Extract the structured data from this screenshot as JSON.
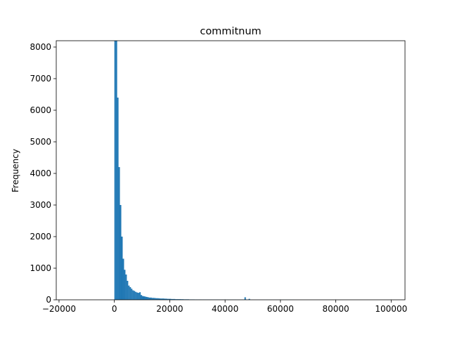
{
  "chart_data": {
    "type": "bar",
    "title": "commitnum",
    "xlabel": "",
    "ylabel": "Frequency",
    "xlim": [
      -21000,
      105000
    ],
    "ylim": [
      0,
      8200
    ],
    "grid": false,
    "bar_color": "#1f77b4",
    "xticks": [
      -20000,
      0,
      20000,
      40000,
      60000,
      80000,
      100000
    ],
    "xtick_labels": [
      "−20000",
      "0",
      "20000",
      "40000",
      "60000",
      "80000",
      "100000"
    ],
    "yticks": [
      0,
      1000,
      2000,
      3000,
      4000,
      5000,
      6000,
      7000,
      8000
    ],
    "ytick_labels": [
      "0",
      "1000",
      "2000",
      "3000",
      "4000",
      "5000",
      "6000",
      "7000",
      "8000"
    ],
    "bin_start": 0,
    "bin_width": 500,
    "values": [
      8200,
      8200,
      6400,
      4200,
      3000,
      2000,
      1300,
      950,
      800,
      600,
      450,
      400,
      350,
      300,
      280,
      250,
      230,
      220,
      240,
      150,
      120,
      110,
      100,
      90,
      80,
      70,
      70,
      60,
      60,
      55,
      50,
      50,
      45,
      40,
      40,
      40,
      35,
      35,
      30,
      30,
      30,
      25,
      25,
      25,
      20,
      20,
      20,
      20,
      18,
      18,
      15,
      15,
      15,
      15,
      12,
      12,
      12,
      12,
      10,
      10,
      10,
      10,
      10,
      9,
      9,
      9,
      8,
      8,
      8,
      8,
      8,
      7,
      7,
      7,
      7,
      7,
      6,
      6,
      6,
      6,
      6,
      5,
      5,
      5,
      5,
      5,
      5,
      5,
      4,
      4,
      4,
      4,
      4,
      4,
      80,
      4,
      4,
      30,
      3,
      3,
      3,
      3,
      3,
      3,
      3,
      3,
      3,
      3,
      2,
      2,
      2,
      2,
      2,
      2,
      2,
      2,
      2,
      2,
      2,
      2,
      2,
      2,
      2,
      2,
      2,
      2,
      2,
      2,
      2,
      2,
      1,
      1,
      1,
      1,
      1,
      1,
      1,
      1,
      1,
      1,
      1,
      1,
      1,
      1,
      1,
      1,
      1,
      1,
      1,
      1,
      1,
      1,
      1,
      1,
      1,
      1,
      1,
      1,
      1,
      1,
      1,
      1,
      1,
      1,
      1,
      1,
      1,
      1,
      1,
      1,
      1,
      1,
      1,
      1,
      1,
      1,
      1,
      1,
      1,
      1,
      1,
      1,
      1,
      1,
      1,
      1,
      1,
      1,
      1,
      1,
      1,
      1,
      1,
      1,
      1,
      1,
      1,
      1,
      1,
      1
    ]
  }
}
